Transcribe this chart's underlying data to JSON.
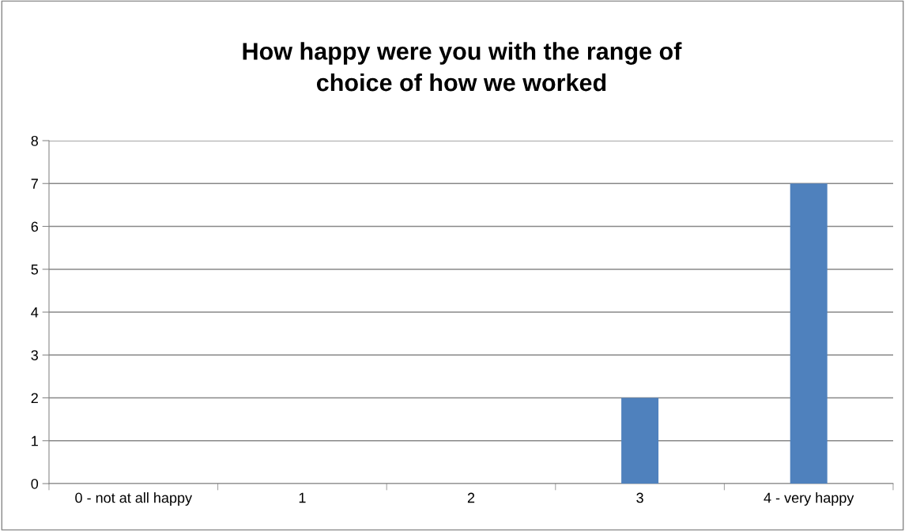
{
  "chart_data": {
    "type": "bar",
    "title": "How happy were you with the range of\nchoice of how we worked",
    "categories": [
      "0 - not at all happy",
      "1",
      "2",
      "3",
      "4 - very happy"
    ],
    "values": [
      0,
      0,
      0,
      2,
      7
    ],
    "color": "#4f81bd",
    "ylim": [
      0,
      8
    ],
    "yticks": [
      0,
      1,
      2,
      3,
      4,
      5,
      6,
      7,
      8
    ],
    "grid": "y",
    "legend": false
  }
}
